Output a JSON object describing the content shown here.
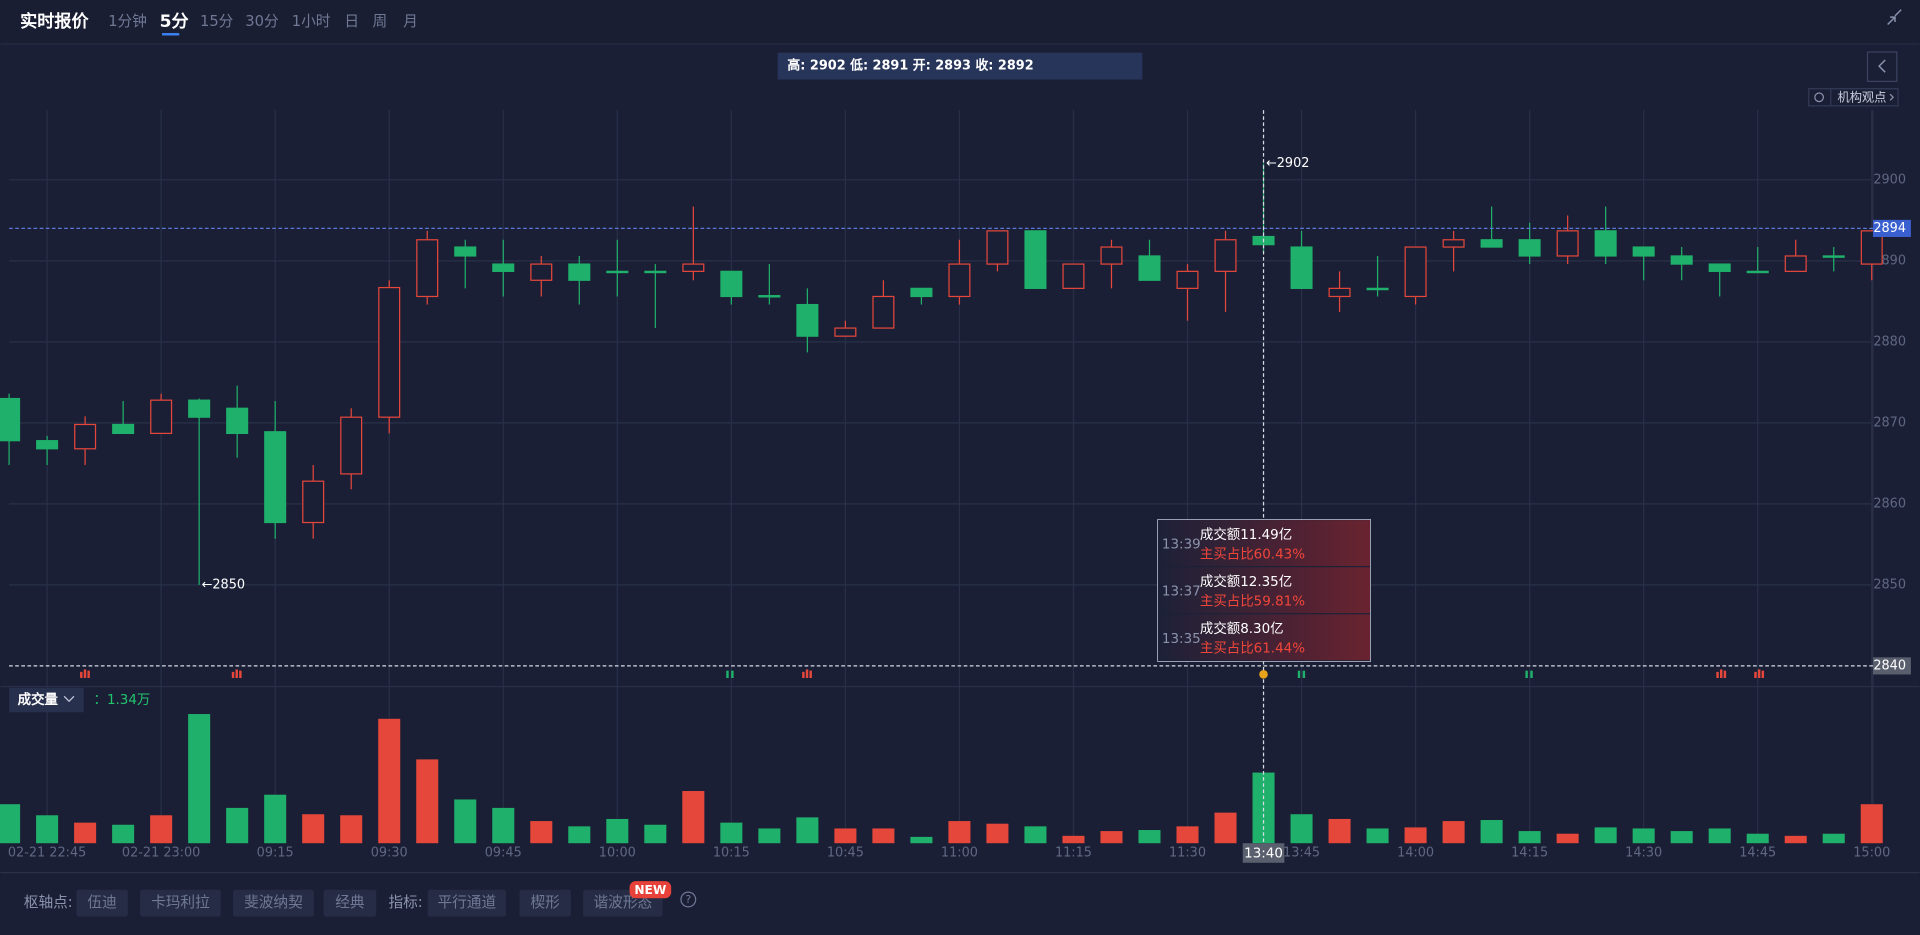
{
  "header": {
    "title": "实时报价",
    "tabs": [
      "1分钟",
      "5分",
      "15分",
      "30分",
      "1小时",
      "日",
      "周",
      "月"
    ],
    "active_tab": 1,
    "ohlc_summary": "高: 2902 低: 2891 开: 2893 收: 2892",
    "tag": "机构观点"
  },
  "chart_data": [
    {
      "type": "candlestick",
      "categories": [
        null,
        "02-21 22:45",
        null,
        null,
        "02-21 23:00",
        null,
        null,
        "09:15",
        null,
        null,
        "09:30",
        null,
        null,
        "09:45",
        null,
        null,
        "10:00",
        null,
        null,
        "10:15",
        null,
        null,
        "10:45",
        null,
        null,
        "11:00",
        null,
        null,
        "11:15",
        null,
        null,
        "11:30",
        null,
        "13:40",
        "13:45",
        null,
        null,
        "14:00",
        null,
        null,
        "14:15",
        null,
        null,
        "14:30",
        null,
        null,
        "14:45",
        null,
        null,
        "15:00"
      ],
      "open": [
        2873.0,
        2867.8,
        2866.8,
        2869.8,
        2868.7,
        2872.8,
        2871.8,
        2868.9,
        2857.7,
        2863.7,
        2870.7,
        2885.6,
        2891.7,
        2889.6,
        2887.6,
        2889.6,
        2888.7,
        2888.7,
        2888.7,
        2888.7,
        2885.7,
        2884.6,
        2880.7,
        2881.7,
        2886.6,
        2885.6,
        2889.6,
        2893.7,
        2886.6,
        2889.6,
        2890.6,
        2886.6,
        2888.7,
        2893,
        2891.7,
        2885.6,
        2886.6,
        2885.6,
        2891.7,
        2892.6,
        2892.6,
        2890.6,
        2893.7,
        2891.7,
        2890.6,
        2889.6,
        2888.7,
        2888.7,
        2890.6,
        2889.6
      ],
      "high": [
        2873.6,
        2868.4,
        2870.8,
        2872.7,
        2873.6,
        2873.0,
        2874.6,
        2872.7,
        2864.8,
        2871.8,
        2887.6,
        2893.7,
        2892.6,
        2892.6,
        2890.6,
        2890.6,
        2892.6,
        2889.6,
        2896.7,
        2888.7,
        2889.6,
        2886.6,
        2882.6,
        2887.6,
        2886.6,
        2892.6,
        2893.7,
        2893.7,
        2889.6,
        2892.6,
        2892.6,
        2889.6,
        2893.7,
        2902,
        2893.7,
        2888.7,
        2890.6,
        2891.7,
        2893.7,
        2896.7,
        2894.7,
        2895.6,
        2896.7,
        2891.7,
        2891.7,
        2889.6,
        2891.7,
        2892.6,
        2891.7,
        2893.7
      ],
      "low": [
        2864.8,
        2864.8,
        2864.8,
        2868.7,
        2868.7,
        2850,
        2865.7,
        2855.7,
        2855.7,
        2861.8,
        2868.7,
        2884.6,
        2886.6,
        2885.6,
        2885.6,
        2884.6,
        2885.6,
        2881.7,
        2887.6,
        2884.6,
        2884.6,
        2878.7,
        2880.7,
        2881.7,
        2884.6,
        2884.6,
        2888.7,
        2886.6,
        2886.6,
        2886.6,
        2887.6,
        2882.6,
        2883.7,
        2891,
        2886.6,
        2883.7,
        2885.6,
        2884.6,
        2888.7,
        2891.7,
        2889.6,
        2889.6,
        2889.6,
        2887.6,
        2887.6,
        2885.6,
        2888.6,
        2888.7,
        2888.7,
        2887.6
      ],
      "close": [
        2867.8,
        2866.8,
        2869.8,
        2868.7,
        2872.8,
        2870.7,
        2868.7,
        2857.7,
        2862.8,
        2870.7,
        2886.7,
        2892.6,
        2890.6,
        2888.7,
        2889.6,
        2887.6,
        2888.6,
        2888.6,
        2889.6,
        2885.6,
        2885.6,
        2880.7,
        2881.7,
        2885.6,
        2885.6,
        2889.6,
        2893.7,
        2886.6,
        2889.6,
        2891.7,
        2887.6,
        2888.7,
        2892.6,
        2892,
        2886.6,
        2886.6,
        2886.5,
        2891.7,
        2892.6,
        2891.7,
        2890.6,
        2893.7,
        2890.6,
        2890.6,
        2889.6,
        2888.7,
        2888.6,
        2890.6,
        2890.5,
        2893.7
      ],
      "up_color": "#e5473b",
      "down_color": "#1fb16b",
      "ylim": [
        2837.6,
        2908.6
      ],
      "yticks": [
        2850,
        2860,
        2870,
        2880,
        2890,
        2900
      ],
      "grid": true,
      "high_marker": "←2902",
      "low_marker": "←2850",
      "last_price": 2894,
      "crosshair_price": 2840,
      "crosshair_index": 33,
      "tooltip": {
        "rows": [
          {
            "time": "13:39",
            "amount": "成交额11.49亿",
            "ratio": "主买占比60.43%"
          },
          {
            "time": "13:37",
            "amount": "成交额12.35亿",
            "ratio": "主买占比59.81%"
          },
          {
            "time": "13:35",
            "amount": "成交额8.30亿",
            "ratio": "主买占比61.44%"
          }
        ]
      }
    },
    {
      "type": "bar",
      "title": "成交量",
      "value_text": "：1.34万",
      "values": [
        0.74,
        0.53,
        0.39,
        0.35,
        0.53,
        2.45,
        0.67,
        0.92,
        0.55,
        0.53,
        2.36,
        1.59,
        0.83,
        0.67,
        0.42,
        0.32,
        0.46,
        0.35,
        0.99,
        0.39,
        0.28,
        0.49,
        0.28,
        0.28,
        0.12,
        0.42,
        0.37,
        0.32,
        0.14,
        0.23,
        0.25,
        0.32,
        0.58,
        1.34,
        0.55,
        0.46,
        0.28,
        0.3,
        0.42,
        0.44,
        0.23,
        0.18,
        0.3,
        0.28,
        0.23,
        0.28,
        0.18,
        0.14,
        0.18,
        0.74
      ],
      "ylim": [
        0,
        2.6
      ]
    }
  ],
  "toolbar": {
    "pivot_label": "枢轴点:",
    "pivot_buttons": [
      "伍迪",
      "卡玛利拉",
      "斐波纳契",
      "经典"
    ],
    "indicator_label": "指标:",
    "indicator_buttons": [
      "平行通道",
      "楔形",
      "谐波形态"
    ],
    "badge": "NEW",
    "help": "?"
  }
}
